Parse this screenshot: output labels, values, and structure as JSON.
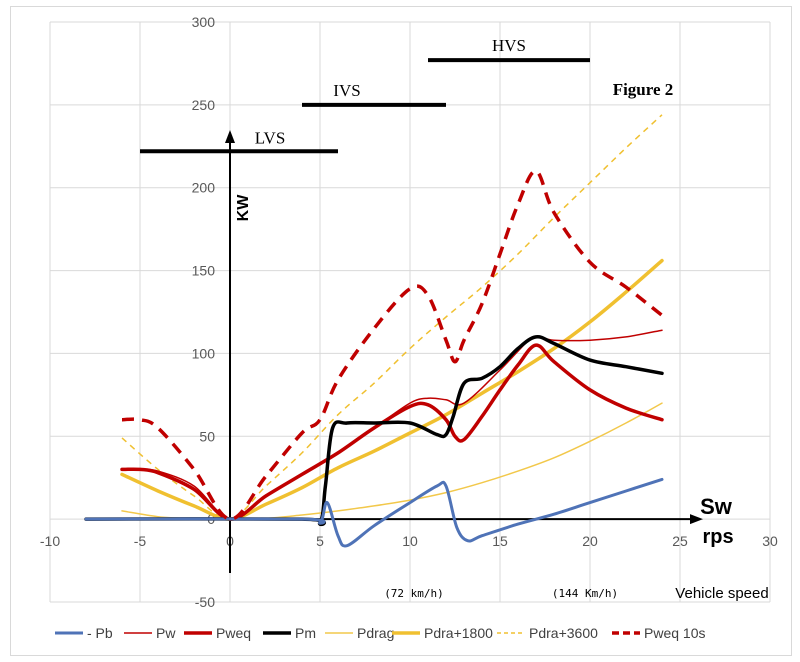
{
  "chart_data": {
    "type": "line",
    "title": "Figure 2",
    "ylabel": "KW",
    "xlabel_main": "Sw",
    "xlabel_unit": "rps",
    "x_caption": "Vehicle speed",
    "x_annotations": [
      {
        "x": 10,
        "text": "(72 km/h)"
      },
      {
        "x": 20,
        "text": "(144 Km/h)"
      }
    ],
    "xlim": [
      -10,
      30
    ],
    "ylim": [
      -50,
      300
    ],
    "x_ticks": [
      -10,
      -5,
      0,
      5,
      10,
      15,
      20,
      25,
      30
    ],
    "y_ticks": [
      -50,
      0,
      50,
      100,
      150,
      200,
      250,
      300
    ],
    "grid": true,
    "legend_position": "bottom",
    "ranges": [
      {
        "label": "LVS",
        "x_start": -5,
        "x_end": 6,
        "y": 222
      },
      {
        "label": "IVS",
        "x_start": 4,
        "x_end": 12,
        "y": 250
      },
      {
        "label": "HVS",
        "x_start": 11,
        "x_end": 20,
        "y": 277
      }
    ],
    "series": [
      {
        "name": "- Pb",
        "color": "#4f73b7",
        "width": 3,
        "dash": "",
        "x": [
          -8,
          4,
          5,
          5.4,
          6,
          6.5,
          8,
          10,
          11.5,
          12,
          12.6,
          13.2,
          14,
          16,
          18,
          20,
          22,
          24
        ],
        "y": [
          0,
          0,
          -2,
          10,
          -10,
          -16,
          -4,
          10,
          20,
          20,
          -5,
          -13,
          -10,
          -3,
          3,
          10,
          17,
          24
        ]
      },
      {
        "name": "Pw",
        "color": "#c00000",
        "width": 1.5,
        "dash": "",
        "x": [
          -6,
          -5,
          -4,
          -2,
          0,
          2,
          4,
          6,
          8,
          10,
          11,
          12,
          13,
          15,
          16.5,
          17,
          18,
          20,
          22,
          24
        ],
        "y": [
          30,
          30,
          29,
          20,
          0,
          14,
          27,
          40,
          55,
          70,
          73,
          72,
          70,
          90,
          107,
          110,
          108,
          108,
          110,
          114
        ]
      },
      {
        "name": "Pweq",
        "color": "#c00000",
        "width": 3.5,
        "dash": "",
        "x": [
          -6,
          -5,
          -4,
          -2,
          0,
          2,
          4,
          6,
          8,
          10,
          11,
          12,
          12.5,
          13,
          14,
          15,
          16,
          17,
          18,
          20,
          22,
          24
        ],
        "y": [
          30,
          30,
          28,
          18,
          0,
          14,
          27,
          40,
          55,
          68,
          69,
          60,
          50,
          48,
          62,
          78,
          93,
          105,
          95,
          78,
          67,
          60
        ]
      },
      {
        "name": "Pm",
        "color": "#000000",
        "width": 3.5,
        "dash": "",
        "x": [
          -8,
          4,
          5,
          5.3,
          5.7,
          6.5,
          8,
          10,
          11.5,
          12,
          12.4,
          13,
          14,
          15,
          16,
          17,
          18,
          20,
          22,
          24
        ],
        "y": [
          0,
          0,
          -2,
          20,
          55,
          58,
          58,
          58,
          51,
          51,
          62,
          82,
          85,
          92,
          103,
          110,
          106,
          96,
          92,
          88
        ]
      },
      {
        "name": "Pdrag",
        "color": "#f2c84b",
        "width": 1.5,
        "dash": "",
        "x": [
          -6,
          -4,
          -2,
          0,
          2,
          4,
          6,
          8,
          10,
          12,
          14,
          16,
          18,
          20,
          22,
          24
        ],
        "y": [
          5,
          1.5,
          0.2,
          0,
          0.5,
          2.5,
          5,
          8,
          11.5,
          16,
          22,
          29,
          37,
          47,
          58,
          70
        ]
      },
      {
        "name": "Pdra+1800",
        "color": "#f0c030",
        "width": 3.5,
        "dash": "",
        "x": [
          -6,
          -4,
          -2,
          0,
          2,
          4,
          6,
          8,
          10,
          12,
          14,
          16,
          18,
          20,
          22,
          24
        ],
        "y": [
          27,
          17,
          8,
          0,
          9,
          19,
          31,
          41,
          52,
          63,
          76,
          89,
          103,
          119,
          137,
          156
        ]
      },
      {
        "name": "Pdra+3600",
        "color": "#f0c030",
        "width": 1.5,
        "dash": "6,5",
        "x": [
          -6,
          -4,
          -2,
          0,
          2,
          4,
          6,
          8,
          10,
          12,
          14,
          16,
          18,
          20,
          22,
          24
        ],
        "y": [
          49,
          30,
          14,
          0,
          20,
          40,
          63,
          82,
          103,
          122,
          140,
          160,
          182,
          203,
          224,
          244
        ]
      },
      {
        "name": "Pweq 10s",
        "color": "#c00000",
        "width": 3.5,
        "dash": "12,8",
        "x": [
          -6,
          -5,
          -4,
          -2,
          0,
          2,
          4,
          5,
          6,
          8,
          10,
          11,
          12,
          12.5,
          13,
          14,
          15,
          16,
          17,
          18,
          20,
          22,
          24
        ],
        "y": [
          60,
          60,
          55,
          30,
          0,
          26,
          52,
          60,
          84,
          115,
          139,
          135,
          108,
          95,
          108,
          130,
          160,
          190,
          210,
          185,
          155,
          140,
          123
        ]
      }
    ]
  }
}
